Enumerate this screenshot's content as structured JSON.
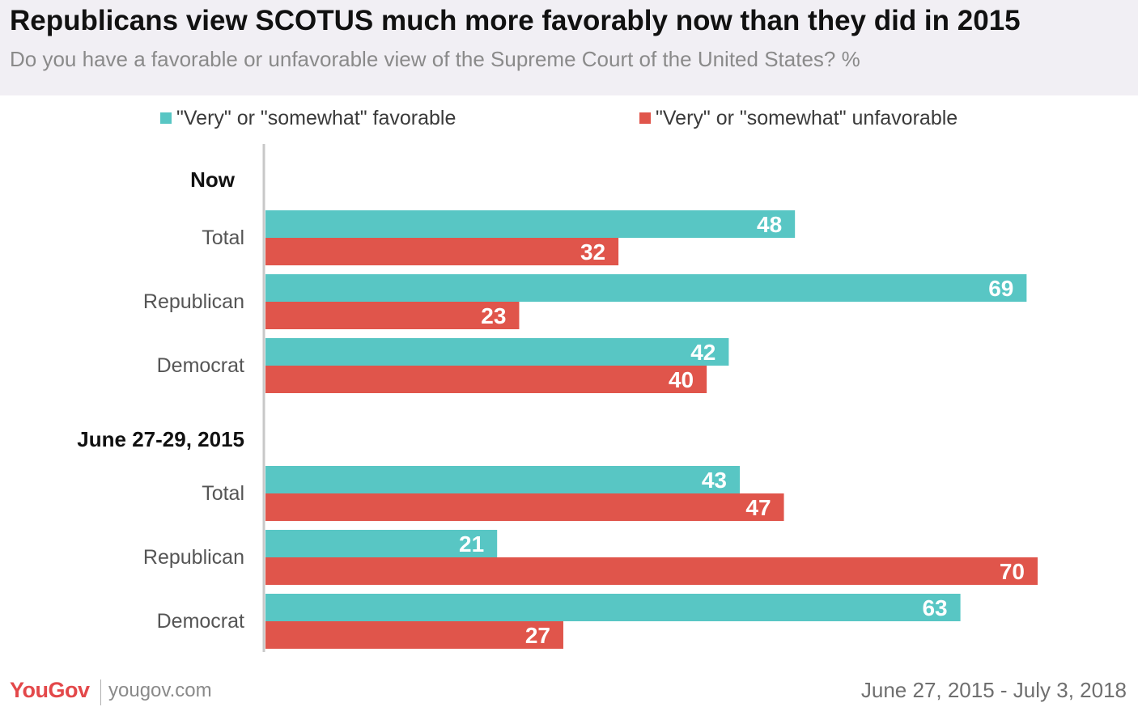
{
  "header": {
    "title": "Republicans view SCOTUS much more favorably now than they did in 2015",
    "subtitle": "Do you have a favorable or unfavorable view of the Supreme Court of the United States? %"
  },
  "footer": {
    "brand": "YouGov",
    "url": "yougov.com",
    "date_range": "June 27, 2015 - July 3, 2018"
  },
  "colors": {
    "favorable": "#58c6c4",
    "unfavorable": "#e0554b",
    "axis": "#c8c8c8",
    "header_bg": "#f1eff4"
  },
  "chart_data": {
    "type": "bar",
    "orientation": "horizontal",
    "title": "Republicans view SCOTUS much more favorably now than they did in 2015",
    "subtitle": "Do you have a favorable or unfavorable view of the Supreme Court of the United States? %",
    "legend": [
      "\"Very\" or \"somewhat\" favorable",
      "\"Very\" or \"somewhat\" unfavorable"
    ],
    "legend_position": "top",
    "xlim": [
      0,
      70
    ],
    "grid": false,
    "groups": [
      {
        "label": "Now",
        "categories": [
          "Total",
          "Republican",
          "Democrat"
        ],
        "series": [
          {
            "name": "\"Very\" or \"somewhat\" favorable",
            "values": [
              48,
              69,
              42
            ]
          },
          {
            "name": "\"Very\" or \"somewhat\" unfavorable",
            "values": [
              32,
              23,
              40
            ]
          }
        ]
      },
      {
        "label": "June 27-29, 2015",
        "categories": [
          "Total",
          "Republican",
          "Democrat"
        ],
        "series": [
          {
            "name": "\"Very\" or \"somewhat\" favorable",
            "values": [
              43,
              21,
              63
            ]
          },
          {
            "name": "\"Very\" or \"somewhat\" unfavorable",
            "values": [
              47,
              70,
              27
            ]
          }
        ]
      }
    ]
  }
}
